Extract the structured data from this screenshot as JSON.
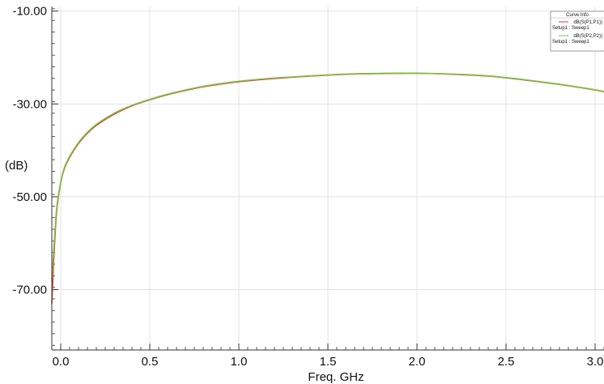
{
  "chart_data": {
    "type": "line",
    "xlabel": "Freq. GHz",
    "ylabel": "(dB)",
    "xlim": [
      -0.05,
      3.05
    ],
    "ylim": [
      -83,
      -9
    ],
    "x_ticks": [
      0.0,
      0.5,
      1.0,
      1.5,
      2.0,
      2.5,
      3.0
    ],
    "x_tick_labels": [
      "0.0",
      "0.5",
      "1.0",
      "1.5",
      "2.0",
      "2.5",
      "3.0"
    ],
    "y_ticks": [
      -10,
      -30,
      -50,
      -70
    ],
    "y_tick_labels": [
      "-10.00",
      "-30.00",
      "-50.00",
      "-70.00"
    ],
    "grid": true,
    "legend": {
      "title": "Curve Info",
      "position": "top-right",
      "entries": [
        {
          "name": "dB(S(P1,P1))",
          "setup": "Setup1 : Sweep1",
          "color": "#e8313a"
        },
        {
          "name": "dB(S(P2,P2))",
          "setup": "Setup1 : Sweep1",
          "color": "#7bc142"
        }
      ]
    },
    "series": [
      {
        "name": "dB(S(P1,P1))",
        "color": "#e8313a",
        "x": [
          -0.05,
          -0.04,
          -0.03,
          -0.02,
          0.0,
          0.02,
          0.05,
          0.1,
          0.15,
          0.2,
          0.3,
          0.4,
          0.5,
          0.6,
          0.7,
          0.8,
          0.9,
          1.0,
          1.2,
          1.4,
          1.6,
          1.8,
          2.0,
          2.2,
          2.4,
          2.6,
          2.8,
          3.0,
          3.05
        ],
        "y": [
          -73,
          -64,
          -57,
          -52,
          -47,
          -44,
          -41.5,
          -38.5,
          -36.3,
          -34.6,
          -32.2,
          -30.4,
          -29.1,
          -28.0,
          -27.1,
          -26.3,
          -25.7,
          -25.2,
          -24.5,
          -24.0,
          -23.6,
          -23.45,
          -23.4,
          -23.6,
          -24.0,
          -24.8,
          -25.8,
          -27.0,
          -27.4
        ]
      },
      {
        "name": "dB(S(P2,P2))",
        "color": "#7bc142",
        "x": [
          -0.05,
          -0.04,
          -0.03,
          -0.02,
          0.0,
          0.02,
          0.05,
          0.1,
          0.15,
          0.2,
          0.3,
          0.4,
          0.5,
          0.6,
          0.7,
          0.8,
          0.9,
          1.0,
          1.2,
          1.4,
          1.6,
          1.8,
          2.0,
          2.2,
          2.4,
          2.6,
          2.8,
          3.0,
          3.05
        ],
        "y": [
          -68,
          -62,
          -56,
          -51.5,
          -46.8,
          -43.8,
          -41.3,
          -38.3,
          -36.1,
          -34.4,
          -32.0,
          -30.3,
          -29.0,
          -27.9,
          -27.0,
          -26.2,
          -25.6,
          -25.1,
          -24.4,
          -23.95,
          -23.55,
          -23.4,
          -23.38,
          -23.55,
          -23.95,
          -24.75,
          -25.75,
          -26.95,
          -27.35
        ]
      }
    ]
  }
}
